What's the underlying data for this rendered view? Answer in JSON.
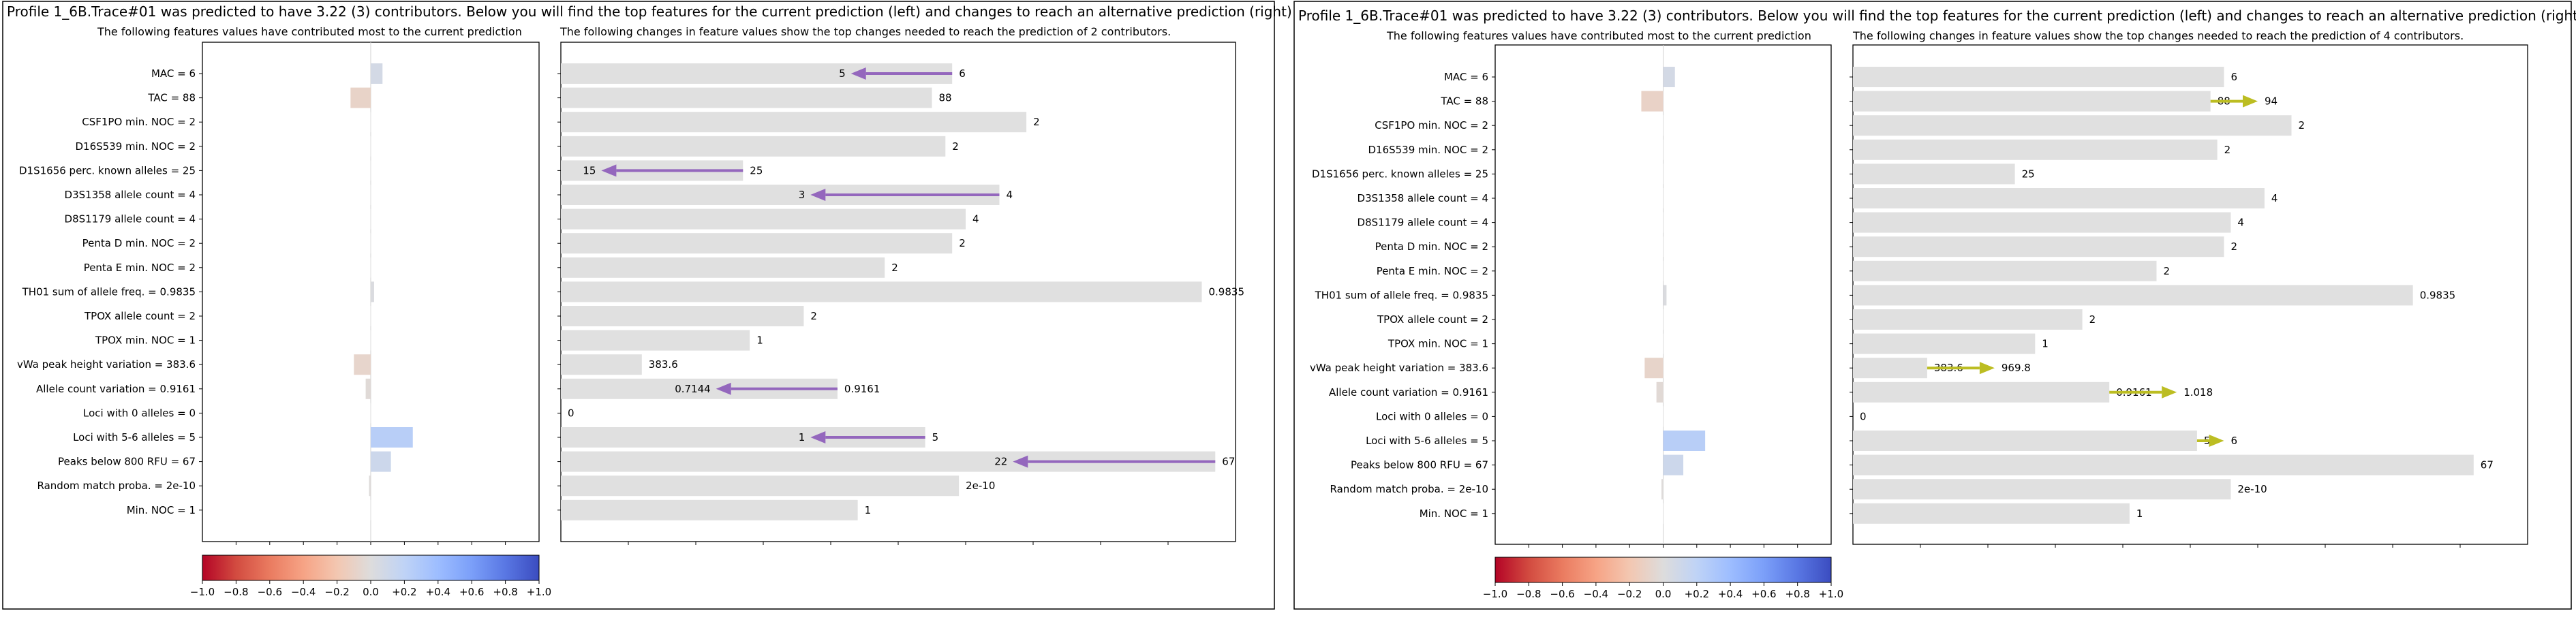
{
  "panels": [
    {
      "title": "Profile 1_6B.Trace#01 was predicted to have 3.22 (3) contributors. Below you will find the top features for the current prediction (left) and changes to reach an alternative prediction (right)",
      "left_subtitle": "The following features values have contributed most to the current prediction",
      "right_subtitle": "The following changes in feature values show the top changes needed to reach the prediction of 2 contributors."
    },
    {
      "title": "Profile 1_6B.Trace#01 was predicted to have 3.22 (3) contributors. Below you will find the top features for the current prediction (left) and changes to reach an alternative prediction (right)",
      "left_subtitle": "The following features values have contributed most to the current prediction",
      "right_subtitle": "The following changes in feature values show the top changes needed to reach the prediction of 4 contributors."
    }
  ],
  "colorbar": {
    "ticks": [
      "−1.0",
      "−0.8",
      "−0.6",
      "−0.4",
      "−0.2",
      "0.0",
      "+0.2",
      "+0.4",
      "+0.6",
      "+0.8",
      "+1.0"
    ],
    "colormap": "coolwarm (red = negative, blue = positive)"
  },
  "colors": {
    "bar_gray": "#e0e0e0",
    "arrow_purple": "#9467bd",
    "arrow_olive": "#bcbd22",
    "axis": "#000000"
  },
  "chart_data": [
    {
      "type": "bar",
      "orientation": "horizontal",
      "role": "feature contributions (panel 1, left)",
      "categories": [
        "MAC = 6",
        "TAC = 88",
        "CSF1PO min. NOC = 2",
        "D16S539 min. NOC = 2",
        "D1S1656 perc. known alleles = 25",
        "D3S1358 allele count = 4",
        "D8S1179 allele count = 4",
        "Penta D min. NOC = 2",
        "Penta E min. NOC = 2",
        "TH01 sum of allele freq. = 0.9835",
        "TPOX allele count = 2",
        "TPOX min. NOC = 1",
        "vWa peak height variation = 383.6",
        "Allele count variation = 0.9161",
        "Loci with 0 alleles = 0",
        "Loci with 5-6 alleles = 5",
        "Peaks below 800 RFU = 67",
        "Random match proba. = 2e-10",
        "Min. NOC = 1"
      ],
      "values": [
        0.07,
        -0.12,
        0.0,
        0.0,
        0.0,
        0.0,
        0.0,
        0.0,
        0.0,
        0.02,
        0.0,
        0.0,
        -0.1,
        -0.03,
        0.0,
        0.25,
        0.12,
        -0.01,
        0.0
      ],
      "xlim": [
        -1.0,
        1.0
      ]
    },
    {
      "type": "bar",
      "orientation": "horizontal",
      "role": "feature values and changes to reach 2 contributors (panel 1, right)",
      "categories": [
        "MAC = 6",
        "TAC = 88",
        "CSF1PO min. NOC = 2",
        "D16S539 min. NOC = 2",
        "D1S1656 perc. known alleles = 25",
        "D3S1358 allele count = 4",
        "D8S1179 allele count = 4",
        "Penta D min. NOC = 2",
        "Penta E min. NOC = 2",
        "TH01 sum of allele freq. = 0.9835",
        "TPOX allele count = 2",
        "TPOX min. NOC = 1",
        "vWa peak height variation = 383.6",
        "Allele count variation = 0.9161",
        "Loci with 0 alleles = 0",
        "Loci with 5-6 alleles = 5",
        "Peaks below 800 RFU = 67",
        "Random match proba. = 2e-10",
        "Min. NOC = 1"
      ],
      "bar_extent": [
        0.58,
        0.55,
        0.69,
        0.57,
        0.27,
        0.65,
        0.6,
        0.58,
        0.48,
        0.95,
        0.36,
        0.28,
        0.12,
        0.41,
        0.0,
        0.54,
        0.97,
        0.59,
        0.44
      ],
      "bar_labels": [
        "6",
        "88",
        "2",
        "2",
        "25",
        "4",
        "4",
        "2",
        "2",
        "0.9835",
        "2",
        "1",
        "383.6",
        "0.9161",
        "0",
        "5",
        "67",
        "2e-10",
        "1"
      ],
      "changes": [
        {
          "feature": "MAC = 6",
          "from": "6",
          "to": "5",
          "target_extent": 0.43
        },
        {
          "feature": "D1S1656 perc. known alleles = 25",
          "from": "25",
          "to": "15",
          "target_extent": 0.06
        },
        {
          "feature": "D3S1358 allele count = 4",
          "from": "4",
          "to": "3",
          "target_extent": 0.37
        },
        {
          "feature": "Allele count variation = 0.9161",
          "from": "0.9161",
          "to": "0.7144",
          "target_extent": 0.23
        },
        {
          "feature": "Loci with 5-6 alleles = 5",
          "from": "5",
          "to": "1",
          "target_extent": 0.37
        },
        {
          "feature": "Peaks below 800 RFU = 67",
          "from": "67",
          "to": "22",
          "target_extent": 0.67
        }
      ]
    },
    {
      "type": "bar",
      "orientation": "horizontal",
      "role": "feature contributions (panel 2, left)",
      "categories": [
        "MAC = 6",
        "TAC = 88",
        "CSF1PO min. NOC = 2",
        "D16S539 min. NOC = 2",
        "D1S1656 perc. known alleles = 25",
        "D3S1358 allele count = 4",
        "D8S1179 allele count = 4",
        "Penta D min. NOC = 2",
        "Penta E min. NOC = 2",
        "TH01 sum of allele freq. = 0.9835",
        "TPOX allele count = 2",
        "TPOX min. NOC = 1",
        "vWa peak height variation = 383.6",
        "Allele count variation = 0.9161",
        "Loci with 0 alleles = 0",
        "Loci with 5-6 alleles = 5",
        "Peaks below 800 RFU = 67",
        "Random match proba. = 2e-10",
        "Min. NOC = 1"
      ],
      "values": [
        0.07,
        -0.13,
        0.0,
        0.0,
        0.0,
        0.0,
        0.0,
        0.0,
        0.0,
        0.02,
        0.0,
        0.0,
        -0.11,
        -0.04,
        0.0,
        0.25,
        0.12,
        -0.01,
        0.0
      ],
      "xlim": [
        -1.0,
        1.0
      ]
    },
    {
      "type": "bar",
      "orientation": "horizontal",
      "role": "feature values and changes to reach 4 contributors (panel 2, right)",
      "categories": [
        "MAC = 6",
        "TAC = 88",
        "CSF1PO min. NOC = 2",
        "D16S539 min. NOC = 2",
        "D1S1656 perc. known alleles = 25",
        "D3S1358 allele count = 4",
        "D8S1179 allele count = 4",
        "Penta D min. NOC = 2",
        "Penta E min. NOC = 2",
        "TH01 sum of allele freq. = 0.9835",
        "TPOX allele count = 2",
        "TPOX min. NOC = 1",
        "vWa peak height variation = 383.6",
        "Allele count variation = 0.9161",
        "Loci with 0 alleles = 0",
        "Loci with 5-6 alleles = 5",
        "Peaks below 800 RFU = 67",
        "Random match proba. = 2e-10",
        "Min. NOC = 1"
      ],
      "bar_extent": [
        0.55,
        0.53,
        0.65,
        0.54,
        0.24,
        0.61,
        0.56,
        0.55,
        0.45,
        0.83,
        0.34,
        0.27,
        0.11,
        0.38,
        0.0,
        0.51,
        0.92,
        0.56,
        0.41
      ],
      "bar_labels": [
        "6",
        "88",
        "2",
        "2",
        "25",
        "4",
        "4",
        "2",
        "2",
        "0.9835",
        "2",
        "1",
        "383.6",
        "0.9161",
        "0",
        "5",
        "67",
        "2e-10",
        "1"
      ],
      "changes": [
        {
          "feature": "TAC = 88",
          "from": "88",
          "to": "94",
          "target_extent": 0.6
        },
        {
          "feature": "vWa peak height variation = 383.6",
          "from": "383.6",
          "to": "969.8",
          "target_extent": 0.21
        },
        {
          "feature": "Allele count variation = 0.9161",
          "from": "0.9161",
          "to": "1.018",
          "target_extent": 0.48
        },
        {
          "feature": "Loci with 5-6 alleles = 5",
          "from": "5",
          "to": "6",
          "target_extent": 0.55
        }
      ]
    }
  ]
}
